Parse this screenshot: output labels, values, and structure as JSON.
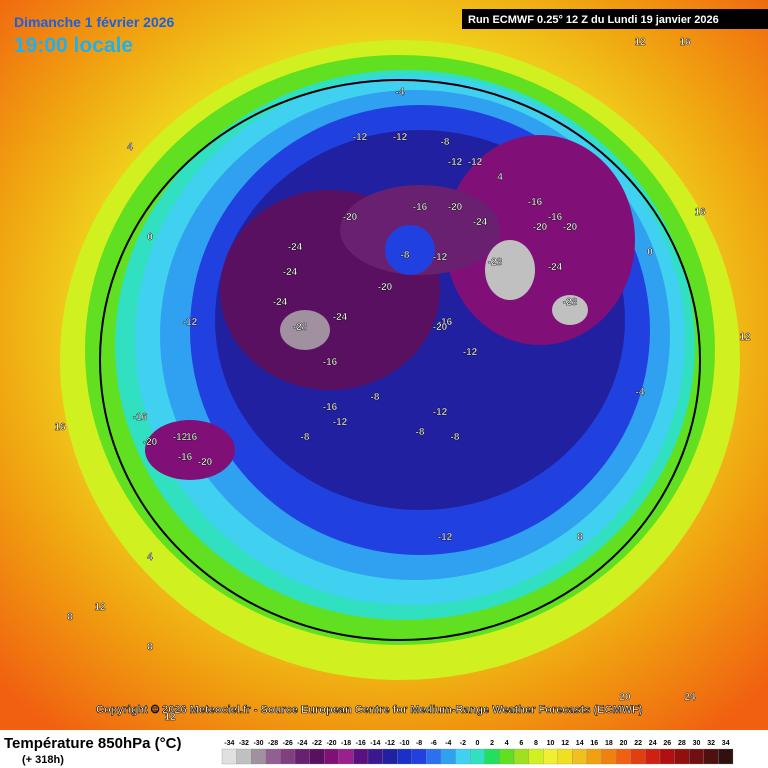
{
  "header": {
    "date": "Dimanche 1 février 2026",
    "time": "19:00 locale",
    "run": "Run ECMWF 0.25° 12 Z du Lundi 19 janvier 2026"
  },
  "copyright": "Copyright © 2026 Meteociel.fr - Source European Centre for Medium-Range Weather Forecasts (ECMWF)",
  "legend": {
    "title": "Température 850hPa (°C)",
    "subtitle": "(+ 318h)",
    "values": [
      -34,
      -32,
      -30,
      -28,
      -26,
      -24,
      -22,
      -20,
      -18,
      -16,
      -14,
      -12,
      -10,
      -8,
      -6,
      -4,
      -2,
      0,
      2,
      4,
      6,
      8,
      10,
      12,
      14,
      16,
      18,
      20,
      22,
      24,
      26,
      28,
      30,
      32,
      34
    ],
    "colors": [
      "#e0e0e0",
      "#c0c0c0",
      "#a090a0",
      "#906090",
      "#804080",
      "#6a2070",
      "#5a1060",
      "#801078",
      "#9a2090",
      "#5a1080",
      "#3a1890",
      "#2020a0",
      "#1a30c8",
      "#2040e0",
      "#2a70f0",
      "#30a0f0",
      "#40d0f0",
      "#30e0c0",
      "#20e060",
      "#60e020",
      "#a0e020",
      "#d0f020",
      "#f0f030",
      "#f0e020",
      "#f0c020",
      "#f0a010",
      "#f08010",
      "#f06010",
      "#e04010",
      "#d02010",
      "#b01010",
      "#901010",
      "#701010",
      "#501010",
      "#301010"
    ]
  },
  "map": {
    "labels": [
      -12,
      -12,
      -8,
      -12,
      -16,
      -12,
      -16,
      -20,
      -16,
      -20,
      -24,
      -20,
      -8,
      -12,
      -28,
      -24,
      -28,
      -24,
      -20,
      -12,
      -24,
      -28,
      -24,
      -20,
      -16,
      -12,
      -24,
      -20,
      -16,
      -16,
      -12,
      -16,
      -20,
      -16,
      -20,
      -16,
      -12,
      -8,
      -8,
      -12,
      -8,
      -8,
      -12,
      -4,
      -4,
      0,
      4,
      8,
      12,
      16,
      12,
      8,
      4,
      0,
      12,
      16,
      20,
      24,
      12,
      16,
      8,
      4
    ]
  }
}
